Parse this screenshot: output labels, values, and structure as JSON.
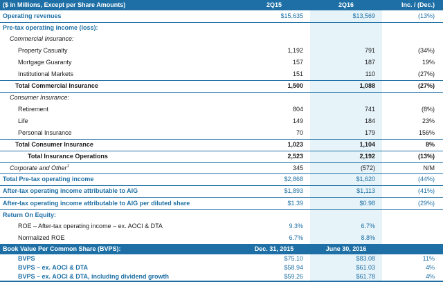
{
  "header": {
    "label": "($ in Millions, Except per Share Amounts)",
    "col_a": "2Q15",
    "col_b": "2Q16",
    "col_c": "Inc. / (Dec.)"
  },
  "operating_revenues": {
    "label": "Operating revenues",
    "a": "$15,635",
    "b": "$13,569",
    "c": "(13%)"
  },
  "pretax_heading": "Pre-tax operating income (loss):",
  "commercial_heading": "Commercial Insurance:",
  "commercial_rows": [
    {
      "label": "Property Casualty",
      "a": "1,192",
      "b": "791",
      "c": "(34%)"
    },
    {
      "label": "Mortgage Guaranty",
      "a": "157",
      "b": "187",
      "c": "19%"
    },
    {
      "label": "Institutional Markets",
      "a": "151",
      "b": "110",
      "c": "(27%)"
    }
  ],
  "total_commercial": {
    "label": "Total Commercial Insurance",
    "a": "1,500",
    "b": "1,088",
    "c": "(27%)"
  },
  "consumer_heading": "Consumer Insurance:",
  "consumer_rows": [
    {
      "label": "Retirement",
      "a": "804",
      "b": "741",
      "c": "(8%)"
    },
    {
      "label": "Life",
      "a": "149",
      "b": "184",
      "c": "23%"
    },
    {
      "label": "Personal Insurance",
      "a": "70",
      "b": "179",
      "c": "156%"
    }
  ],
  "total_consumer": {
    "label": "Total Consumer Insurance",
    "a": "1,023",
    "b": "1,104",
    "c": "8%"
  },
  "total_insurance_ops": {
    "label": "Total Insurance Operations",
    "a": "2,523",
    "b": "2,192",
    "c": "(13%)"
  },
  "corporate_other": {
    "label": "Corporate and Other",
    "sup": "1",
    "a": "345",
    "b": "(572)",
    "c": "N/M"
  },
  "total_pretax": {
    "label": "Total Pre-tax operating income",
    "a": "$2,868",
    "b": "$1,620",
    "c": "(44%)"
  },
  "aftertax": {
    "label": "After-tax operating income attributable to AIG",
    "a": "$1,893",
    "b": "$1,113",
    "c": "(41%)"
  },
  "aftertax_per_share": {
    "label": "After-tax operating income attributable to AIG per diluted share",
    "a": "$1.39",
    "b": "$0.98",
    "c": "(29%)"
  },
  "roe_heading": "Return On Equity:",
  "roe_rows": [
    {
      "label": "ROE – After-tax operating income – ex. AOCI & DTA",
      "a": "9.3%",
      "b": "6.7%",
      "c": ""
    },
    {
      "label": "Normalized ROE",
      "a": "6.7%",
      "b": "8.8%",
      "c": ""
    }
  ],
  "bvps_header": {
    "label": "Book Value Per Common Share (BVPS):",
    "a": "Dec. 31, 2015",
    "b": "June 30, 2016",
    "c": ""
  },
  "bvps_rows": [
    {
      "label": "BVPS",
      "a": "$75.10",
      "b": "$83.08",
      "c": "11%"
    },
    {
      "label": "BVPS – ex. AOCI & DTA",
      "a": "$58.94",
      "b": "$61.03",
      "c": "4%"
    },
    {
      "label": "BVPS – ex. AOCI & DTA, including dividend growth",
      "a": "$59.26",
      "b": "$61.78",
      "c": "4%"
    }
  ],
  "colors": {
    "accent": "#1d6fa5",
    "shade": "#e6f3f9"
  }
}
